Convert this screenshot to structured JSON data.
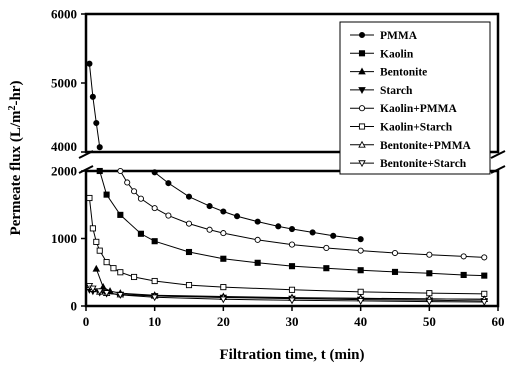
{
  "chart_data": {
    "type": "line",
    "xlabel": "Filtration time, t (min)",
    "ylabel_parts": [
      "Permeate flux (L/m",
      "2",
      "-hr)"
    ],
    "xlim": [
      0,
      60
    ],
    "x_ticks": [
      0,
      10,
      20,
      30,
      40,
      50,
      60
    ],
    "y_lower_range": [
      0,
      2000
    ],
    "y_lower_ticks": [
      0,
      1000,
      2000
    ],
    "y_upper_range": [
      4000,
      6000
    ],
    "y_upper_ticks": [
      4000,
      5000,
      6000
    ],
    "axis_break": "between 2000 and 4000 on the y axis",
    "grid": false,
    "legend_position": "top-right",
    "series": [
      {
        "name": "PMMA",
        "marker": "filled-circle",
        "x": [
          0.5,
          1.0,
          1.5,
          2.0,
          10,
          12,
          15,
          18,
          20,
          22,
          25,
          28,
          30,
          33,
          36,
          40
        ],
        "y": [
          5280,
          4800,
          4420,
          4070,
          1980,
          1820,
          1620,
          1480,
          1400,
          1330,
          1250,
          1180,
          1140,
          1090,
          1040,
          990
        ]
      },
      {
        "name": "Kaolin",
        "marker": "filled-square",
        "x": [
          2.0,
          3.0,
          5.0,
          8.0,
          10,
          15,
          20,
          25,
          30,
          35,
          40,
          45,
          50,
          55,
          58
        ],
        "y": [
          2000,
          1650,
          1350,
          1070,
          960,
          800,
          700,
          640,
          590,
          560,
          530,
          505,
          485,
          460,
          450
        ]
      },
      {
        "name": "Bentonite",
        "marker": "filled-triangle-up",
        "x": [
          1.5,
          2.5,
          3.5,
          5,
          10,
          20,
          30,
          40,
          50,
          58
        ],
        "y": [
          550,
          280,
          220,
          190,
          160,
          140,
          125,
          115,
          105,
          100
        ]
      },
      {
        "name": "Starch",
        "marker": "filled-triangle-down",
        "x": [
          0.5,
          1.0,
          2.0,
          3.0,
          5,
          10,
          20,
          30,
          40,
          50,
          58
        ],
        "y": [
          240,
          220,
          200,
          185,
          170,
          150,
          125,
          110,
          95,
          85,
          75
        ]
      },
      {
        "name": "Kaolin+PMMA",
        "marker": "open-circle",
        "x": [
          5,
          6,
          7,
          8,
          10,
          12,
          15,
          18,
          20,
          25,
          30,
          35,
          40,
          45,
          50,
          55,
          58
        ],
        "y": [
          2000,
          1830,
          1700,
          1590,
          1450,
          1340,
          1220,
          1130,
          1080,
          980,
          910,
          860,
          820,
          785,
          760,
          735,
          720
        ]
      },
      {
        "name": "Kaolin+Starch",
        "marker": "open-square",
        "x": [
          0.5,
          1.0,
          1.5,
          2.0,
          3.0,
          4.0,
          5,
          7,
          10,
          15,
          20,
          30,
          40,
          50,
          58
        ],
        "y": [
          1600,
          1150,
          950,
          820,
          650,
          560,
          500,
          430,
          370,
          310,
          280,
          240,
          210,
          190,
          180
        ]
      },
      {
        "name": "Bentonite+PMMA",
        "marker": "open-triangle-up",
        "x": [
          0.5,
          1,
          2,
          3,
          5,
          10,
          20,
          30,
          40,
          50,
          58
        ],
        "y": [
          280,
          250,
          210,
          190,
          170,
          150,
          130,
          120,
          112,
          105,
          100
        ]
      },
      {
        "name": "Bentonite+Starch",
        "marker": "open-triangle-down",
        "x": [
          0.5,
          1,
          2,
          3,
          5,
          10,
          20,
          30,
          40,
          50,
          58
        ],
        "y": [
          300,
          260,
          220,
          195,
          165,
          130,
          100,
          85,
          75,
          65,
          60
        ]
      }
    ]
  }
}
